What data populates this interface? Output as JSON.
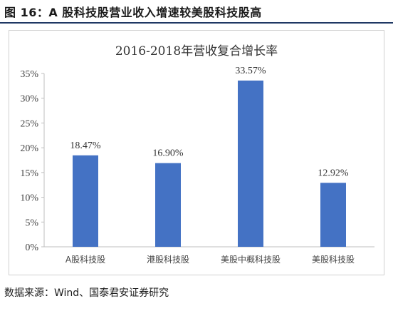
{
  "figure": {
    "title": "图 16：A 股科技股营业收入增速较美股科技股高",
    "source": "数据来源：Wind、国泰君安证券研究"
  },
  "chart_data": {
    "type": "bar",
    "title": "2016-2018年营收复合增长率",
    "categories": [
      "A股科技股",
      "港股科技股",
      "美股中概科技股",
      "美股科技股"
    ],
    "values": [
      18.47,
      16.9,
      33.57,
      12.92
    ],
    "value_labels": [
      "18.47%",
      "16.90%",
      "33.57%",
      "12.92%"
    ],
    "ylim": [
      0,
      35
    ],
    "yticks": [
      0,
      5,
      10,
      15,
      20,
      25,
      30,
      35
    ],
    "ytick_labels": [
      "0%",
      "5%",
      "10%",
      "15%",
      "20%",
      "25%",
      "30%",
      "35%"
    ],
    "xlabel": "",
    "ylabel": "",
    "grid": false,
    "bar_color": "#4472C4"
  }
}
